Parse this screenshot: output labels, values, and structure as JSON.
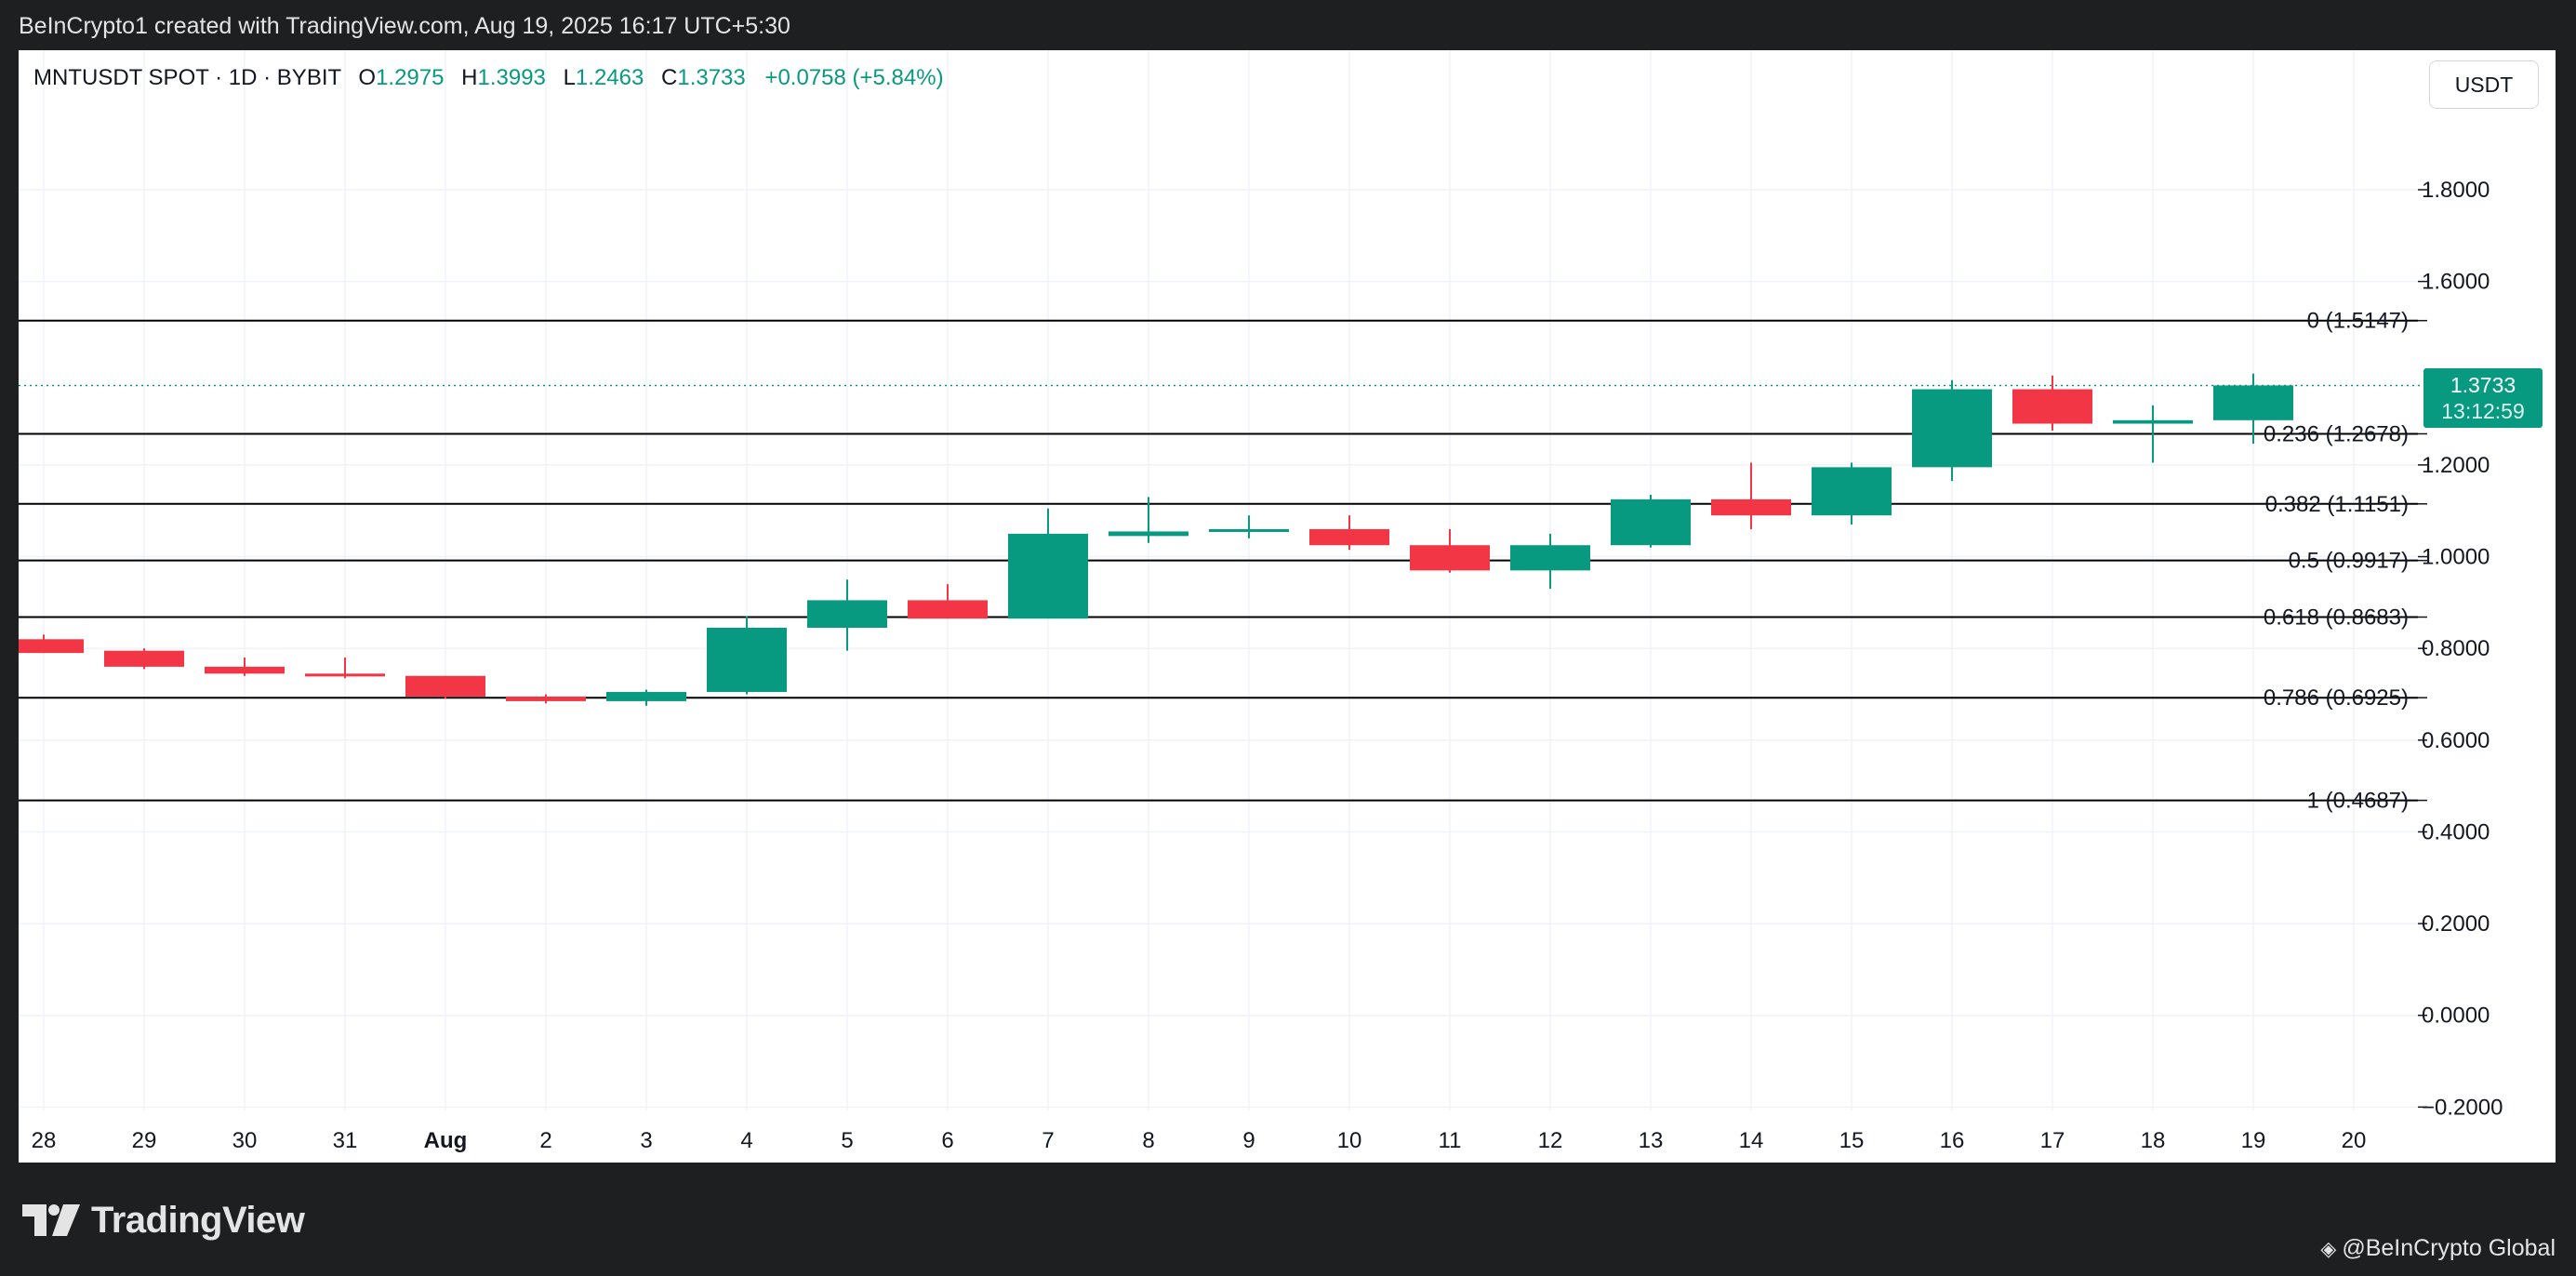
{
  "caption": "BeInCrypto1 created with TradingView.com, Aug 19, 2025 16:17 UTC+5:30",
  "legend": {
    "symbol": "MNTUSDT SPOT · 1D · BYBIT",
    "o_label": "O",
    "o_value": "1.2975",
    "h_label": "H",
    "h_value": "1.3993",
    "l_label": "L",
    "l_value": "1.2463",
    "c_label": "C",
    "c_value": "1.3733",
    "change": "+0.0758 (+5.84%)"
  },
  "currency": "USDT",
  "price_tag": {
    "price": "1.3733",
    "countdown": "13:12:59"
  },
  "footer": {
    "logo_text": "TradingView",
    "credit": "@BeInCrypto Global"
  },
  "colors": {
    "up": "#089981",
    "down": "#f23645",
    "grid": "#f0f3fa",
    "fib_line": "#000000",
    "text": "#131722"
  },
  "chart_data": {
    "type": "candlestick",
    "y_axis": {
      "range": [
        -0.2,
        2.0
      ],
      "ticks": [
        "1.8000",
        "1.6000",
        "1.2000",
        "1.0000",
        "0.8000",
        "0.6000",
        "0.4000",
        "0.2000",
        "0.0000",
        "−0.2000"
      ],
      "tick_values": [
        1.8,
        1.6,
        1.2,
        1.0,
        0.8,
        0.6,
        0.4,
        0.2,
        0.0,
        -0.2
      ]
    },
    "x_labels": [
      "28",
      "29",
      "30",
      "31",
      "Aug",
      "2",
      "3",
      "4",
      "5",
      "6",
      "7",
      "8",
      "9",
      "10",
      "11",
      "12",
      "13",
      "14",
      "15",
      "16",
      "17",
      "18",
      "19",
      "20"
    ],
    "candles": [
      {
        "date": "Jul 28",
        "open": 0.82,
        "high": 0.83,
        "low": 0.79,
        "close": 0.79
      },
      {
        "date": "Jul 29",
        "open": 0.795,
        "high": 0.8,
        "low": 0.755,
        "close": 0.76
      },
      {
        "date": "Jul 30",
        "open": 0.76,
        "high": 0.78,
        "low": 0.74,
        "close": 0.745
      },
      {
        "date": "Jul 31",
        "open": 0.745,
        "high": 0.78,
        "low": 0.735,
        "close": 0.74
      },
      {
        "date": "Aug 1",
        "open": 0.74,
        "high": 0.74,
        "low": 0.69,
        "close": 0.695
      },
      {
        "date": "Aug 2",
        "open": 0.695,
        "high": 0.7,
        "low": 0.68,
        "close": 0.685
      },
      {
        "date": "Aug 3",
        "open": 0.685,
        "high": 0.71,
        "low": 0.675,
        "close": 0.705
      },
      {
        "date": "Aug 4",
        "open": 0.705,
        "high": 0.87,
        "low": 0.7,
        "close": 0.845
      },
      {
        "date": "Aug 5",
        "open": 0.845,
        "high": 0.95,
        "low": 0.795,
        "close": 0.905
      },
      {
        "date": "Aug 6",
        "open": 0.905,
        "high": 0.94,
        "low": 0.865,
        "close": 0.865
      },
      {
        "date": "Aug 7",
        "open": 0.865,
        "high": 1.105,
        "low": 0.865,
        "close": 1.05
      },
      {
        "date": "Aug 8",
        "open": 1.045,
        "high": 1.13,
        "low": 1.03,
        "close": 1.055
      },
      {
        "date": "Aug 9",
        "open": 1.055,
        "high": 1.09,
        "low": 1.04,
        "close": 1.06
      },
      {
        "date": "Aug 10",
        "open": 1.06,
        "high": 1.09,
        "low": 1.015,
        "close": 1.025
      },
      {
        "date": "Aug 11",
        "open": 1.025,
        "high": 1.06,
        "low": 0.965,
        "close": 0.97
      },
      {
        "date": "Aug 12",
        "open": 0.97,
        "high": 1.05,
        "low": 0.93,
        "close": 1.025
      },
      {
        "date": "Aug 13",
        "open": 1.025,
        "high": 1.135,
        "low": 1.02,
        "close": 1.125
      },
      {
        "date": "Aug 14",
        "open": 1.125,
        "high": 1.205,
        "low": 1.06,
        "close": 1.09
      },
      {
        "date": "Aug 15",
        "open": 1.09,
        "high": 1.205,
        "low": 1.07,
        "close": 1.195
      },
      {
        "date": "Aug 16",
        "open": 1.195,
        "high": 1.385,
        "low": 1.165,
        "close": 1.365
      },
      {
        "date": "Aug 17",
        "open": 1.365,
        "high": 1.395,
        "low": 1.275,
        "close": 1.29
      },
      {
        "date": "Aug 18",
        "open": 1.29,
        "high": 1.33,
        "low": 1.205,
        "close": 1.2975
      },
      {
        "date": "Aug 19",
        "open": 1.2975,
        "high": 1.3993,
        "low": 1.2463,
        "close": 1.3733
      }
    ],
    "fib_levels": [
      {
        "label": "0 (1.5147)",
        "value": 1.5147
      },
      {
        "label": "0.236 (1.2678)",
        "value": 1.2678
      },
      {
        "label": "0.382 (1.1151)",
        "value": 1.1151
      },
      {
        "label": "0.5 (0.9917)",
        "value": 0.9917
      },
      {
        "label": "0.618 (0.8683)",
        "value": 0.8683
      },
      {
        "label": "0.786 (0.6925)",
        "value": 0.6925
      },
      {
        "label": "1 (0.4687)",
        "value": 0.4687
      }
    ],
    "last_price": 1.3733,
    "grid": true
  }
}
